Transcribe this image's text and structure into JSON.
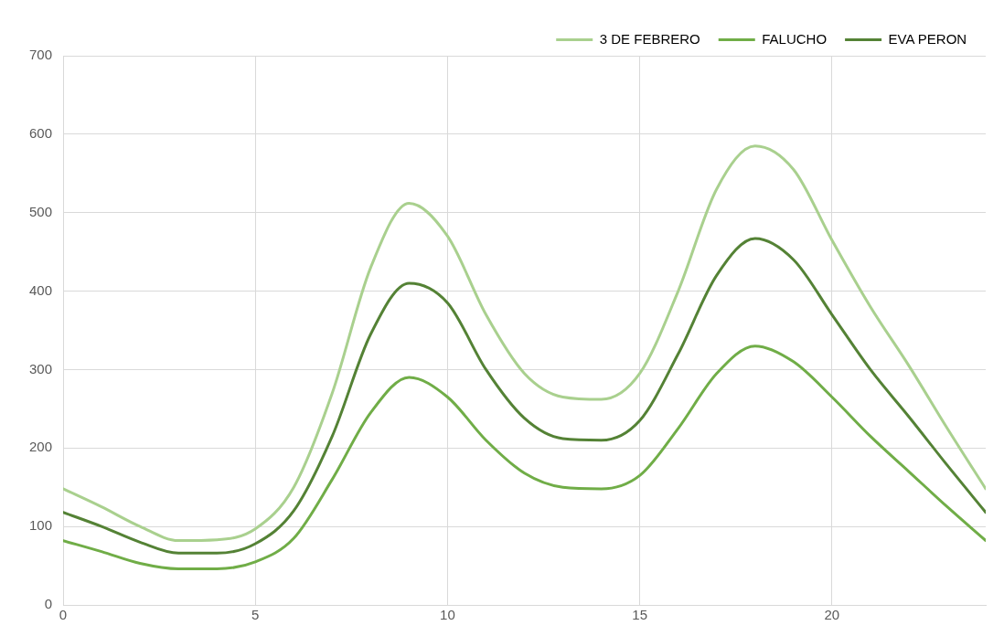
{
  "chart_data": {
    "type": "line",
    "x": [
      0,
      1,
      2,
      3,
      4,
      5,
      6,
      7,
      8,
      9,
      10,
      11,
      12,
      13,
      14,
      15,
      16,
      17,
      18,
      19,
      20,
      21,
      22,
      23,
      24
    ],
    "series": [
      {
        "name": "3 DE FEBRERO",
        "color": "#a9d08e",
        "values": [
          148,
          125,
          100,
          82,
          83,
          97,
          150,
          270,
          430,
          512,
          470,
          370,
          295,
          265,
          262,
          295,
          400,
          530,
          585,
          555,
          465,
          380,
          305,
          225,
          148
        ]
      },
      {
        "name": "FALUCHO",
        "color": "#70ad47",
        "values": [
          82,
          68,
          53,
          46,
          46,
          55,
          85,
          160,
          245,
          290,
          265,
          210,
          168,
          150,
          148,
          165,
          225,
          295,
          330,
          310,
          265,
          215,
          170,
          125,
          82
        ]
      },
      {
        "name": "EVA PERON",
        "color": "#548235",
        "values": [
          118,
          100,
          80,
          66,
          66,
          78,
          120,
          215,
          345,
          410,
          385,
          300,
          238,
          212,
          210,
          235,
          320,
          420,
          467,
          440,
          370,
          300,
          240,
          178,
          118
        ]
      }
    ],
    "xlim": [
      0,
      24
    ],
    "xticks": [
      0,
      5,
      10,
      15,
      20
    ],
    "ylim": [
      0,
      700
    ],
    "yticks": [
      0,
      100,
      200,
      300,
      400,
      500,
      600,
      700
    ],
    "grid": true,
    "legend": "top right",
    "marker": "none",
    "line_style": "solid"
  }
}
